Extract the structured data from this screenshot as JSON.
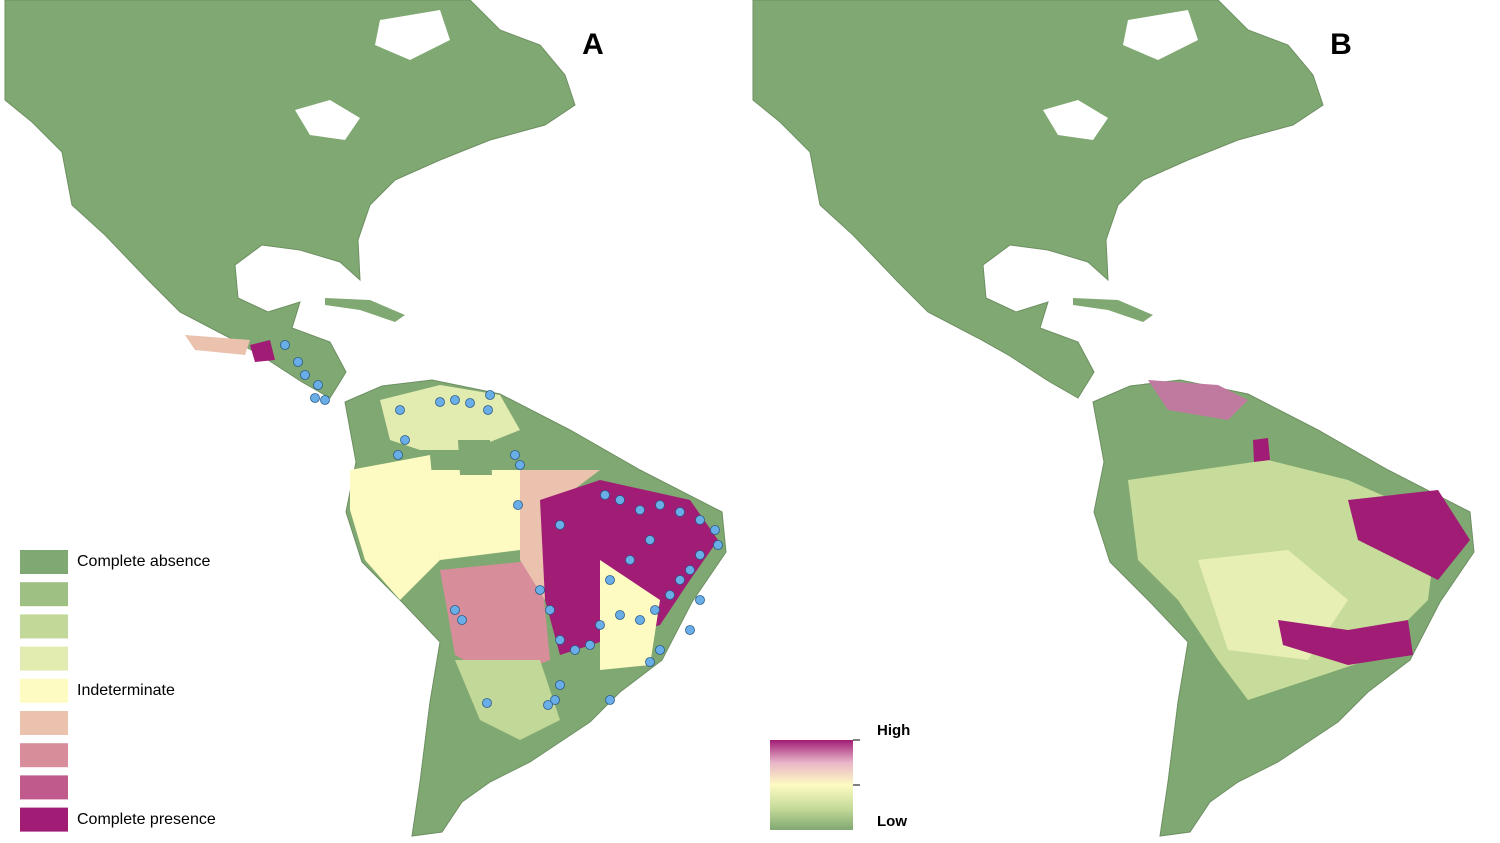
{
  "panels": [
    {
      "label": "A",
      "legend": {
        "items": [
          {
            "label": "Complete absence",
            "color": "#80a872"
          },
          {
            "color": "#9fc083"
          },
          {
            "color": "#c2d898"
          },
          {
            "color": "#e2ebb0"
          },
          {
            "label": "Indeterminate",
            "color": "#fdfbc2"
          },
          {
            "color": "#ebc2ad"
          },
          {
            "color": "#d88d9b"
          },
          {
            "color": "#c05a8c"
          },
          {
            "label": "Complete presence",
            "color": "#a11c74"
          }
        ]
      },
      "points_color": "#6aaee8"
    },
    {
      "label": "B",
      "legend": {
        "high": "High",
        "low": "Low",
        "colors": [
          "#a11c74",
          "#e8b5c8",
          "#fdfbc2",
          "#c7dc9a",
          "#80a872"
        ]
      }
    }
  ]
}
